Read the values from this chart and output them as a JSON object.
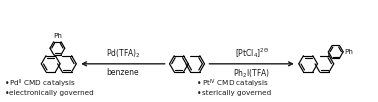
{
  "bg_color": "#ffffff",
  "fig_width": 3.78,
  "fig_height": 1.02,
  "dpi": 100,
  "left_bullet1": "Pd$^{\\mathregular{II}}$ CMD catalysis",
  "left_bullet2": "electronically governed",
  "right_bullet1": "Pt$^{\\mathregular{IV}}$ CMD catalysis",
  "right_bullet2": "sterically governed",
  "left_arrow_label1": "Pd(TFA)$_2$",
  "left_arrow_label2": "benzene",
  "right_arrow_label1": "[PtCl$_4$]$^{2\\Theta}$",
  "right_arrow_label2": "Ph$_2$I(TFA)",
  "text_color": "#1a1a1a",
  "font_size": 5.5,
  "label_font_size": 5.5,
  "bullet_font_size": 5.2
}
